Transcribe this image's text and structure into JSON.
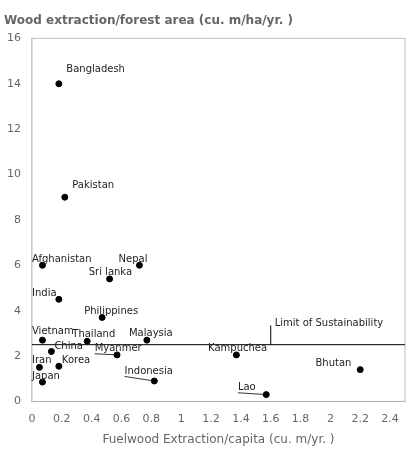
{
  "chart_data": {
    "type": "scatter",
    "title": "Wood extraction/forest area (cu. m/ha/yr. )",
    "x_label": "Fuelwood Extraction/capita (cu. m/yr. )",
    "labels": [
      "Bangladesh",
      "Pakistan",
      "Afghanistan",
      "Nepal",
      "Sri lanka",
      "India",
      "Philippines",
      "Vietnam",
      "Thailand",
      "Malaysia",
      "China",
      "Iran",
      "Korea",
      "Japan",
      "Myanmer",
      "Indonesia",
      "Kampuchea",
      "Lao",
      "Bhutan"
    ],
    "x": [
      0.18,
      0.22,
      0.07,
      0.72,
      0.52,
      0.18,
      0.47,
      0.07,
      0.37,
      0.77,
      0.13,
      0.05,
      0.18,
      0.07,
      0.57,
      0.82,
      1.37,
      1.57,
      2.2
    ],
    "values": [
      14.0,
      9.0,
      6.0,
      6.0,
      5.4,
      4.5,
      3.7,
      2.7,
      2.65,
      2.7,
      2.2,
      1.5,
      1.55,
      0.85,
      2.05,
      0.9,
      2.05,
      0.3,
      1.4
    ],
    "label_x": [
      0.23,
      0.27,
      0.0,
      0.58,
      0.38,
      0.0,
      0.35,
      0.0,
      0.27,
      0.65,
      0.15,
      0.0,
      0.2,
      0.0,
      0.42,
      0.62,
      1.18,
      1.38,
      1.9
    ],
    "label_y": [
      14.4,
      9.3,
      6.05,
      6.05,
      5.45,
      4.55,
      3.75,
      2.85,
      2.75,
      2.78,
      2.22,
      1.58,
      1.58,
      0.88,
      2.1,
      1.1,
      2.1,
      0.38,
      1.45
    ],
    "leader_lines": [
      false,
      false,
      false,
      false,
      false,
      false,
      false,
      false,
      false,
      false,
      false,
      false,
      false,
      false,
      true,
      true,
      false,
      true,
      false
    ],
    "color": "#000000",
    "hline": 2.5,
    "vline": {
      "x": 1.6,
      "y": [
        2.5,
        3.35
      ]
    },
    "annotations": [
      {
        "text": "Limit of Sustainability",
        "x": 1.6,
        "y": 3.35
      }
    ],
    "xlim": [
      0,
      2.5
    ],
    "ylim": [
      0,
      16
    ],
    "xticks": [
      0,
      0.2,
      0.4,
      0.6,
      0.8,
      1,
      1.2,
      1.4,
      1.6,
      1.8,
      2,
      2.2,
      2.4
    ],
    "yticks": [
      0,
      2,
      4,
      6,
      8,
      10,
      12,
      14,
      16
    ],
    "grid": false
  }
}
